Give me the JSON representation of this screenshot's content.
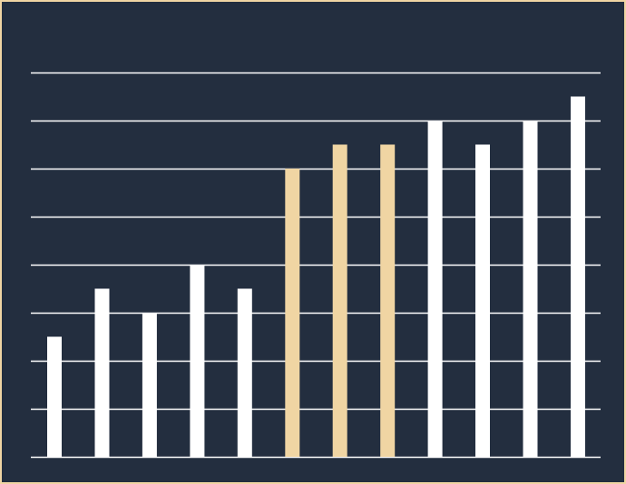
{
  "chart_data": {
    "type": "bar",
    "title": "",
    "xlabel": "",
    "ylabel": "",
    "categories": [
      "",
      "",
      "",
      "",
      "",
      "",
      "",
      "",
      "",
      "",
      "",
      ""
    ],
    "values": [
      2.5,
      3.5,
      3,
      4,
      3.5,
      6,
      6.5,
      6.5,
      7,
      6.5,
      7,
      7.5
    ],
    "highlight_indices": [
      5,
      6,
      7
    ],
    "ylim": [
      0,
      8
    ],
    "ytick_step": 1,
    "grid": true,
    "legend": "none",
    "colors": {
      "background": "#232e3f",
      "frame": "#f0d5a3",
      "bar": "#ffffff",
      "highlight": "#f0d5a3",
      "gridline": "#ffffff"
    }
  }
}
